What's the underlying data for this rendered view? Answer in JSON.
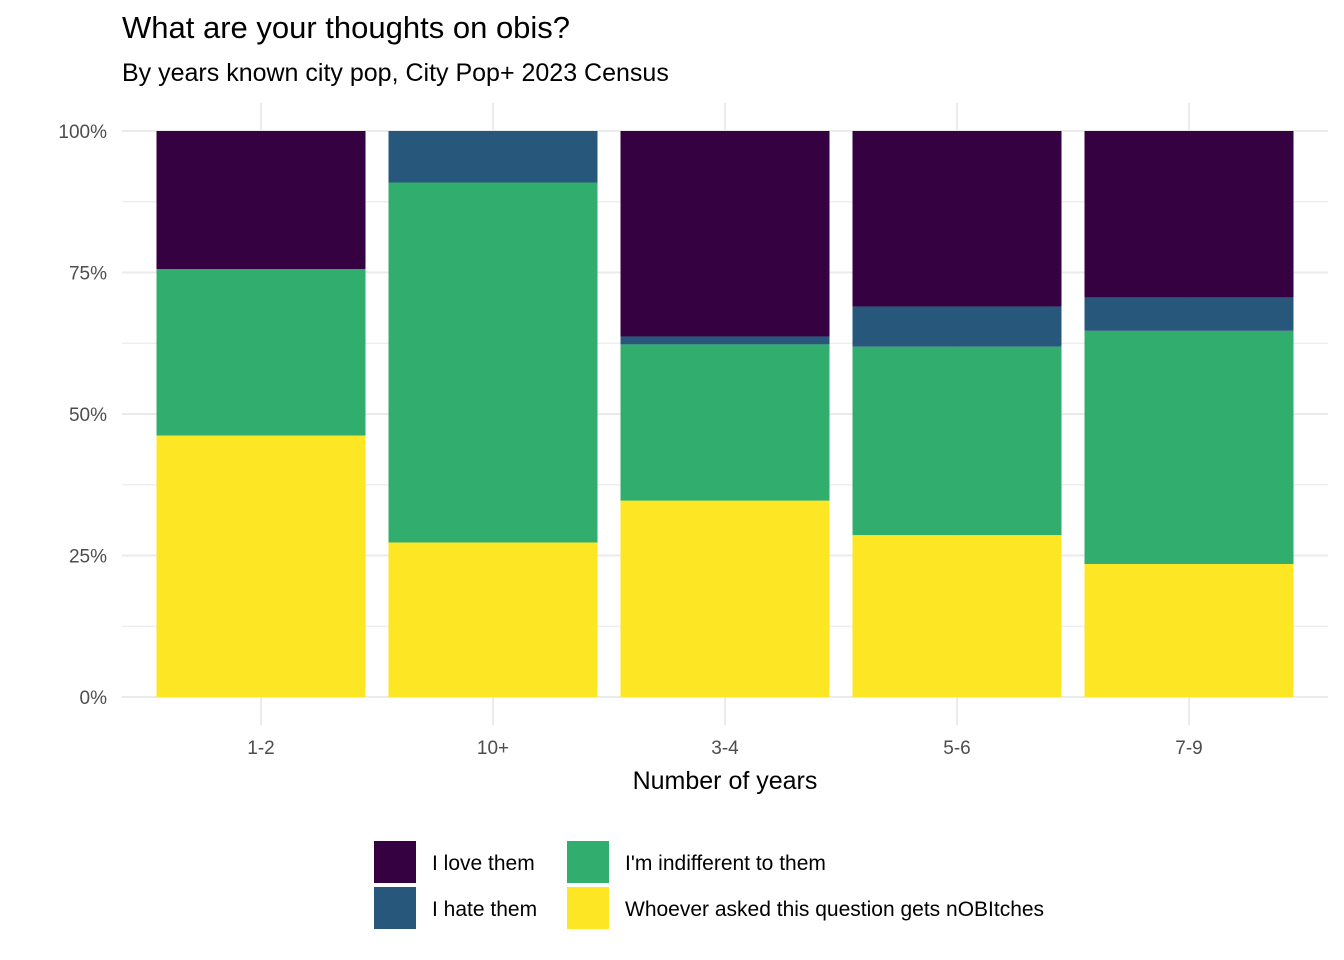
{
  "chart_data": {
    "type": "bar",
    "stacked": true,
    "normalized": true,
    "title": "What are your thoughts on obis?",
    "subtitle": "By years known city pop, City Pop+ 2023 Census",
    "xlabel": "Number of years",
    "ylabel": "",
    "categories": [
      "1-2",
      "10+",
      "3-4",
      "5-6",
      "7-9"
    ],
    "ylim": [
      0,
      1
    ],
    "y_ticks": [
      "0%",
      "25%",
      "50%",
      "75%",
      "100%"
    ],
    "grid": true,
    "legend_position": "bottom",
    "series": [
      {
        "name": "Whoever asked this question gets nOBItches",
        "color": "#fde725",
        "values": [
          0.462,
          0.273,
          0.347,
          0.286,
          0.235
        ]
      },
      {
        "name": "I'm indifferent to them",
        "color": "#31ae6d",
        "values": [
          0.294,
          0.636,
          0.276,
          0.333,
          0.412
        ]
      },
      {
        "name": "I hate them",
        "color": "#28577c",
        "values": [
          0.0,
          0.091,
          0.014,
          0.071,
          0.059
        ]
      },
      {
        "name": "I love them",
        "color": "#360141",
        "values": [
          0.244,
          0.0,
          0.363,
          0.31,
          0.294
        ]
      }
    ],
    "legend_order": [
      "I love them",
      "I hate them",
      "I'm indifferent to them",
      "Whoever asked this question gets nOBItches"
    ]
  }
}
